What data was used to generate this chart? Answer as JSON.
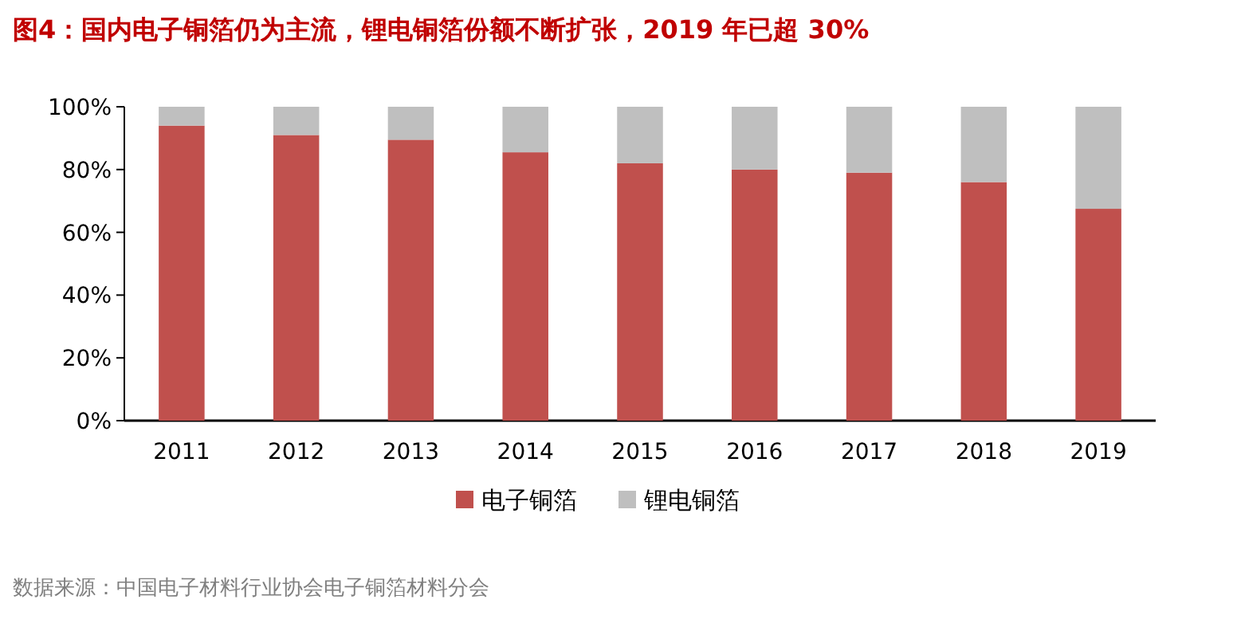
{
  "chart_data": {
    "type": "bar",
    "title": "图4：国内电子铜箔仍为主流，锂电铜箔份额不断扩张，2019 年已超 30%",
    "categories": [
      "2011",
      "2012",
      "2013",
      "2014",
      "2015",
      "2016",
      "2017",
      "2018",
      "2019"
    ],
    "series": [
      {
        "name": "电子铜箔",
        "color": "#c0504d",
        "values": [
          94,
          91,
          89.5,
          85.5,
          82,
          80,
          79,
          76,
          67.5
        ]
      },
      {
        "name": "锂电铜箔",
        "color": "#bfbfbf",
        "values": [
          6,
          9,
          10.5,
          14.5,
          18,
          20,
          21,
          24,
          32.5
        ]
      }
    ],
    "stacked": true,
    "ylim": [
      0,
      100
    ],
    "yticks": [
      {
        "value": 0,
        "label": "0%"
      },
      {
        "value": 20,
        "label": "20%"
      },
      {
        "value": 40,
        "label": "40%"
      },
      {
        "value": 60,
        "label": "60%"
      },
      {
        "value": 80,
        "label": "80%"
      },
      {
        "value": 100,
        "label": "100%"
      }
    ],
    "legend": "bottom",
    "annotations": [
      "数据来源：中国电子材料行业协会电子铜箔材料分会"
    ]
  }
}
